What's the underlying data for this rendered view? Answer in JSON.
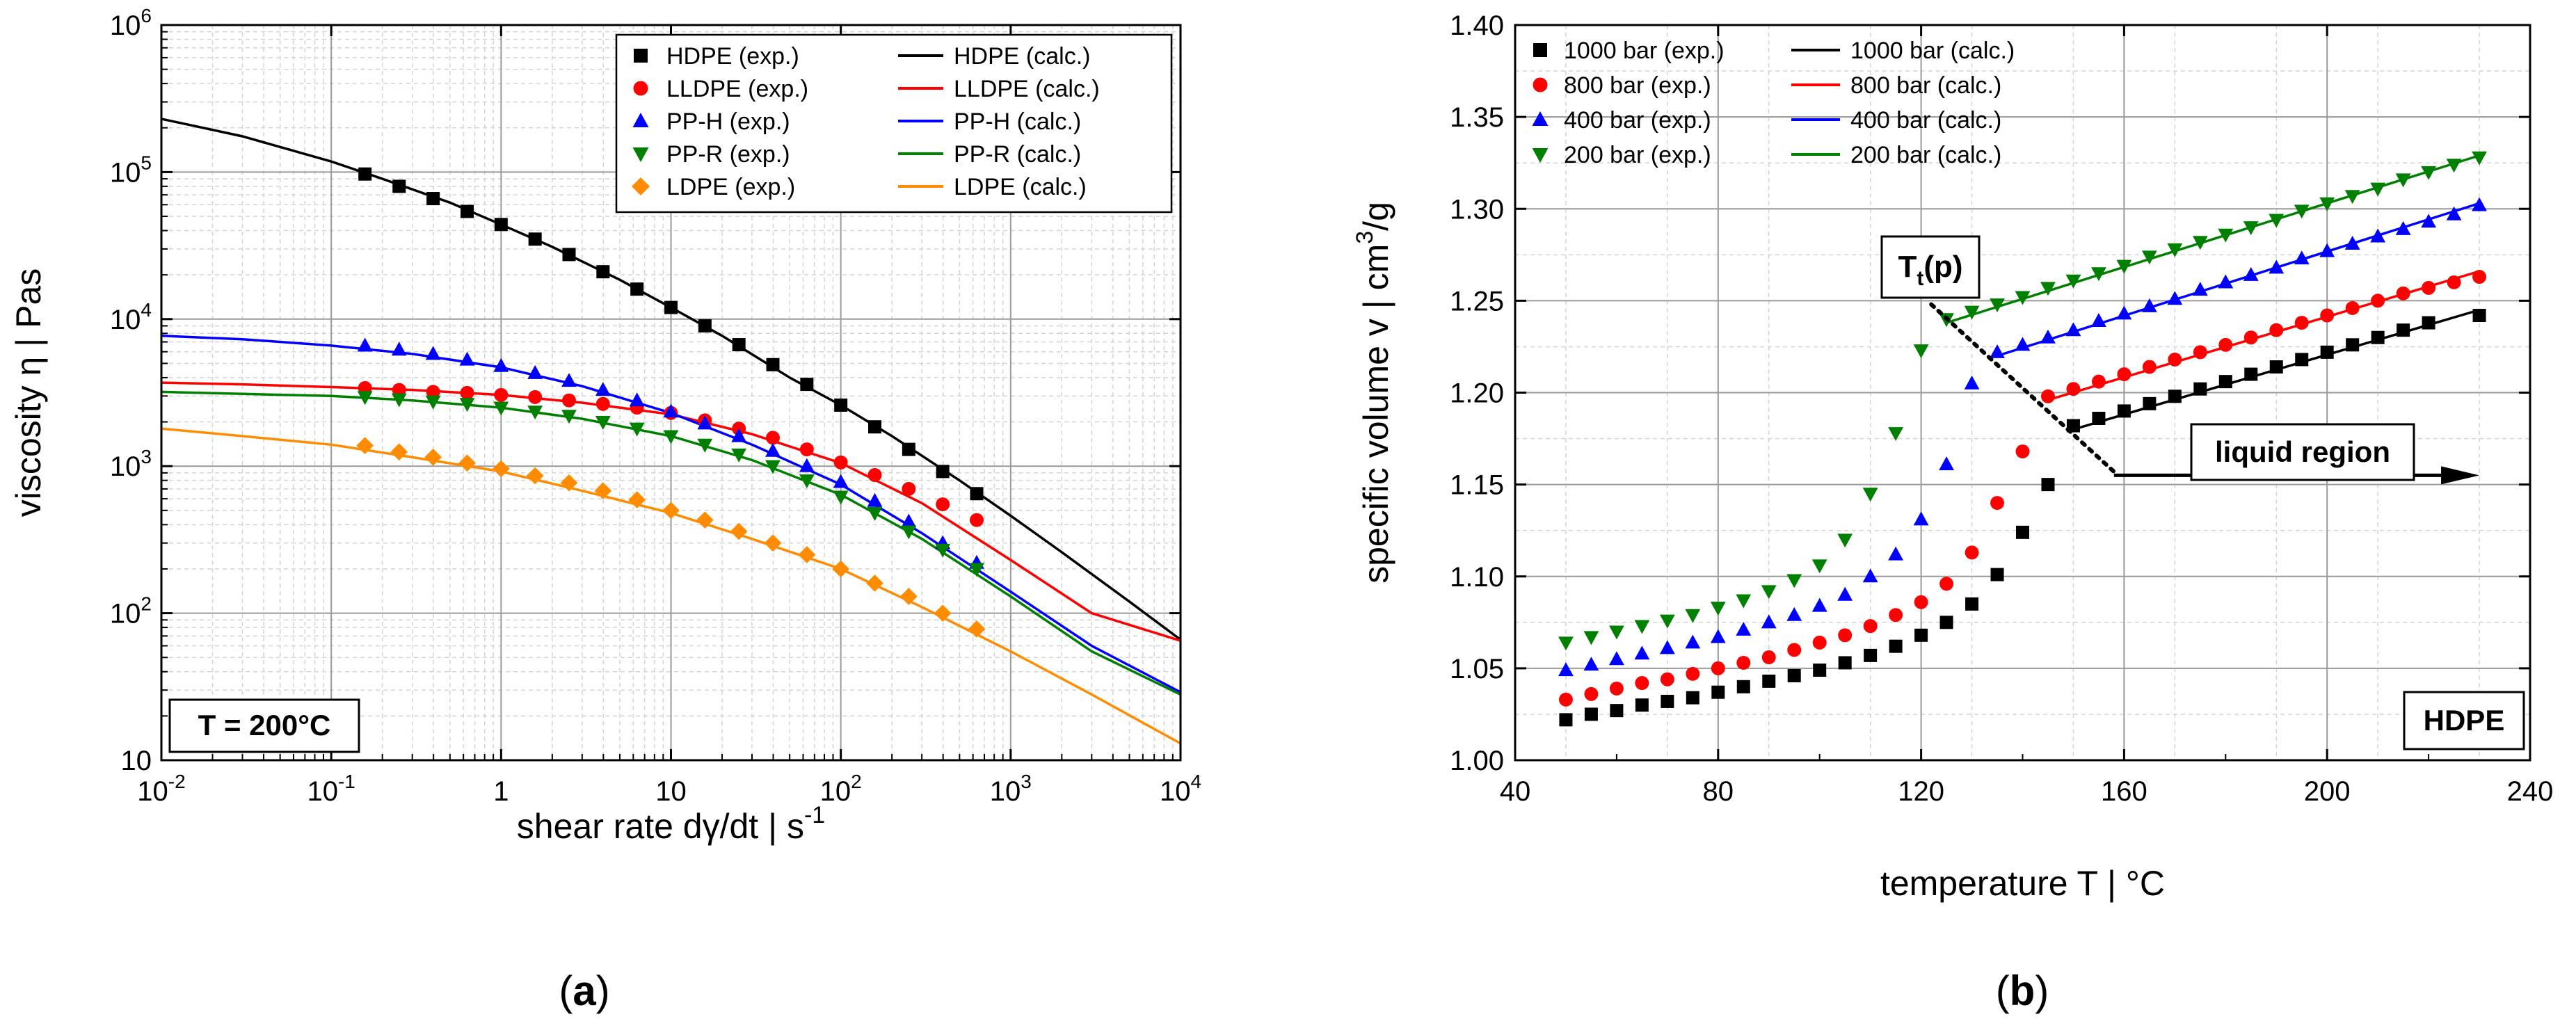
{
  "chart_data": [
    {
      "panel_label": "(a)",
      "type": "scatter",
      "xscale": "log",
      "yscale": "log",
      "xlim": [
        0.01,
        10000
      ],
      "ylim": [
        10,
        1000000
      ],
      "xlabel": "shear rate dγ/dt  |  s-1",
      "ylabel": "viscosity η  |  Pas",
      "x_ticks": [
        "10-2",
        "10-1",
        "1",
        "10",
        "102",
        "103",
        "104"
      ],
      "y_ticks": [
        "10",
        "102",
        "103",
        "104",
        "105",
        "106"
      ],
      "grid": true,
      "legend_position": "top-right",
      "annotation": "T = 200°C",
      "series": [
        {
          "material": "HDPE",
          "exp_label": "HDPE  (exp.)",
          "calc_label": "HDPE  (calc.)",
          "color": "#000000",
          "marker": "square",
          "exp": {
            "x": [
              0.158,
              0.251,
              0.398,
              0.631,
              1.0,
              1.585,
              2.512,
              3.981,
              6.31,
              10,
              15.85,
              25.12,
              39.81,
              63.1,
              100,
              158.5,
              251.2,
              398.1,
              631
            ],
            "y": [
              97000,
              80000,
              66000,
              54000,
              44000,
              35000,
              27500,
              21000,
              16000,
              12000,
              9000,
              6700,
              4900,
              3600,
              2600,
              1850,
              1300,
              920,
              650
            ]
          },
          "calc": {
            "x": [
              0.01,
              0.03,
              0.1,
              0.2,
              0.5,
              1,
              2,
              5,
              10,
              20,
              50,
              100,
              200,
              500,
              1000,
              2000,
              5000,
              10000
            ],
            "y": [
              230000,
              175000,
              118000,
              90000,
              62000,
              44000,
              31000,
              18500,
              12000,
              7700,
              4000,
              2600,
              1600,
              800,
              460,
              260,
              120,
              66
            ]
          }
        },
        {
          "material": "LLDPE",
          "exp_label": "LLDPE (exp.)",
          "calc_label": "LLDPE  (calc.)",
          "color": "#ff0000",
          "marker": "circle",
          "exp": {
            "x": [
              0.158,
              0.251,
              0.398,
              0.631,
              1.0,
              1.585,
              2.512,
              3.981,
              6.31,
              10,
              15.85,
              25.12,
              39.81,
              63.1,
              100,
              158.5,
              251.2,
              398.1,
              631
            ],
            "y": [
              3400,
              3300,
              3200,
              3150,
              3050,
              2950,
              2800,
              2650,
              2500,
              2300,
              2050,
              1800,
              1560,
              1300,
              1060,
              870,
              700,
              550,
              430
            ]
          },
          "calc": {
            "x": [
              0.01,
              0.03,
              0.1,
              0.3,
              1,
              3,
              10,
              30,
              100,
              300,
              1000,
              3000,
              10000
            ],
            "y": [
              3700,
              3600,
              3450,
              3300,
              3050,
              2700,
              2250,
              1650,
              1050,
              560,
              230,
              100,
              65
            ]
          }
        },
        {
          "material": "PP-H",
          "exp_label": "PP-H    (exp.)",
          "calc_label": "PP-H     (calc.)",
          "color": "#0000ff",
          "marker": "triangle-up",
          "exp": {
            "x": [
              0.158,
              0.251,
              0.398,
              0.631,
              1.0,
              1.585,
              2.512,
              3.981,
              6.31,
              10,
              15.85,
              25.12,
              39.81,
              63.1,
              100,
              158.5,
              251.2,
              398.1,
              631
            ],
            "y": [
              6600,
              6200,
              5800,
              5300,
              4800,
              4300,
              3800,
              3300,
              2800,
              2350,
              1950,
              1600,
              1270,
              1000,
              780,
              580,
              420,
              300,
              220
            ]
          },
          "calc": {
            "x": [
              0.01,
              0.03,
              0.1,
              0.3,
              1,
              3,
              10,
              30,
              100,
              300,
              1000,
              3000,
              10000
            ],
            "y": [
              7700,
              7300,
              6600,
              5800,
              4700,
              3500,
              2300,
              1400,
              750,
              350,
              140,
              60,
              29
            ]
          }
        },
        {
          "material": "PP-R",
          "exp_label": "PP-R    (exp.)",
          "calc_label": "PP-R     (calc.)",
          "color": "#008000",
          "marker": "triangle-down",
          "exp": {
            "x": [
              0.158,
              0.251,
              0.398,
              0.631,
              1.0,
              1.585,
              2.512,
              3.981,
              6.31,
              10,
              15.85,
              25.12,
              39.81,
              63.1,
              100,
              158.5,
              251.2,
              398.1,
              631
            ],
            "y": [
              2950,
              2850,
              2750,
              2650,
              2500,
              2350,
              2200,
              2000,
              1800,
              1600,
              1400,
              1200,
              1000,
              800,
              620,
              480,
              360,
              270,
              200
            ]
          },
          "calc": {
            "x": [
              0.01,
              0.03,
              0.1,
              0.3,
              1,
              3,
              10,
              30,
              100,
              300,
              1000,
              3000,
              10000
            ],
            "y": [
              3200,
              3100,
              3000,
              2800,
              2500,
              2100,
              1600,
              1100,
              640,
              320,
              130,
              55,
              28
            ]
          }
        },
        {
          "material": "LDPE",
          "exp_label": "LDPE    (exp.)",
          "calc_label": "LDPE     (calc.)",
          "color": "#ff8c00",
          "marker": "diamond",
          "exp": {
            "x": [
              0.158,
              0.251,
              0.398,
              0.631,
              1.0,
              1.585,
              2.512,
              3.981,
              6.31,
              10,
              15.85,
              25.12,
              39.81,
              63.1,
              100,
              158.5,
              251.2,
              398.1,
              631
            ],
            "y": [
              1380,
              1250,
              1150,
              1050,
              960,
              860,
              770,
              680,
              590,
              500,
              430,
              360,
              300,
              250,
              200,
              160,
              130,
              100,
              78
            ]
          },
          "calc": {
            "x": [
              0.01,
              0.03,
              0.1,
              0.3,
              1,
              3,
              10,
              30,
              100,
              300,
              1000,
              3000,
              10000
            ],
            "y": [
              1800,
              1600,
              1400,
              1150,
              920,
              680,
              480,
              320,
              200,
              110,
              55,
              28,
              13
            ]
          }
        }
      ]
    },
    {
      "panel_label": "(b)",
      "type": "scatter",
      "xlim": [
        40,
        240
      ],
      "ylim": [
        1.0,
        1.4
      ],
      "xlabel": "temperature T  |  °C",
      "ylabel": "specific volume v  |  cm3/g",
      "x_ticks": [
        "40",
        "80",
        "120",
        "160",
        "200",
        "240"
      ],
      "y_ticks": [
        "1.00",
        "1.05",
        "1.10",
        "1.15",
        "1.20",
        "1.25",
        "1.30",
        "1.35",
        "1.40"
      ],
      "grid": true,
      "legend_position": "top-left",
      "annotations": {
        "transition": "Tt(p)",
        "region": "liquid region",
        "material": "HDPE"
      },
      "transition_line": {
        "x": [
          122,
          158
        ],
        "y": [
          1.248,
          1.157
        ]
      },
      "region_arrow": {
        "x": [
          158,
          230
        ],
        "y": [
          1.155,
          1.155
        ]
      },
      "series": [
        {
          "pressure": "1000 bar",
          "exp_label": "1000 bar  (exp.)",
          "calc_label": "1000 bar   (calc.)",
          "color": "#000000",
          "marker": "square",
          "exp": {
            "x": [
              50,
              55,
              60,
              65,
              70,
              75,
              80,
              85,
              90,
              95,
              100,
              105,
              110,
              115,
              120,
              125,
              130,
              135,
              140,
              145,
              150,
              155,
              160,
              165,
              170,
              175,
              180,
              185,
              190,
              195,
              200,
              205,
              210,
              215,
              220,
              230
            ],
            "y": [
              1.022,
              1.025,
              1.027,
              1.03,
              1.032,
              1.034,
              1.037,
              1.04,
              1.043,
              1.046,
              1.049,
              1.053,
              1.057,
              1.062,
              1.068,
              1.075,
              1.085,
              1.101,
              1.124,
              1.15,
              1.182,
              1.186,
              1.19,
              1.194,
              1.198,
              1.202,
              1.206,
              1.21,
              1.214,
              1.218,
              1.222,
              1.226,
              1.23,
              1.234,
              1.238,
              1.242
            ]
          },
          "calc": {
            "x": [
              150,
              230
            ],
            "y": [
              1.18,
              1.245
            ]
          }
        },
        {
          "pressure": "800 bar",
          "exp_label": "800 bar   (exp.)",
          "calc_label": "800 bar    (calc.)",
          "color": "#ff0000",
          "marker": "circle",
          "exp": {
            "x": [
              50,
              55,
              60,
              65,
              70,
              75,
              80,
              85,
              90,
              95,
              100,
              105,
              110,
              115,
              120,
              125,
              130,
              135,
              140,
              145,
              150,
              155,
              160,
              165,
              170,
              175,
              180,
              185,
              190,
              195,
              200,
              205,
              210,
              215,
              220,
              225,
              230
            ],
            "y": [
              1.033,
              1.036,
              1.039,
              1.042,
              1.044,
              1.047,
              1.05,
              1.053,
              1.056,
              1.06,
              1.064,
              1.068,
              1.073,
              1.079,
              1.086,
              1.096,
              1.113,
              1.14,
              1.168,
              1.198,
              1.202,
              1.206,
              1.21,
              1.214,
              1.218,
              1.222,
              1.226,
              1.23,
              1.234,
              1.238,
              1.242,
              1.246,
              1.25,
              1.254,
              1.257,
              1.26,
              1.263
            ]
          },
          "calc": {
            "x": [
              145,
              230
            ],
            "y": [
              1.196,
              1.266
            ]
          }
        },
        {
          "pressure": "400 bar",
          "exp_label": "400 bar   (exp.)",
          "calc_label": "400 bar    (calc.)",
          "color": "#0000ff",
          "marker": "triangle-up",
          "exp": {
            "x": [
              50,
              55,
              60,
              65,
              70,
              75,
              80,
              85,
              90,
              95,
              100,
              105,
              110,
              115,
              120,
              125,
              130,
              135,
              140,
              145,
              150,
              155,
              160,
              165,
              170,
              175,
              180,
              185,
              190,
              195,
              200,
              205,
              210,
              215,
              220,
              225,
              230
            ],
            "y": [
              1.049,
              1.052,
              1.055,
              1.058,
              1.061,
              1.064,
              1.067,
              1.071,
              1.075,
              1.079,
              1.084,
              1.09,
              1.1,
              1.112,
              1.131,
              1.161,
              1.205,
              1.222,
              1.226,
              1.23,
              1.234,
              1.239,
              1.243,
              1.247,
              1.251,
              1.256,
              1.26,
              1.264,
              1.268,
              1.273,
              1.277,
              1.281,
              1.285,
              1.289,
              1.293,
              1.297,
              1.302
            ]
          },
          "calc": {
            "x": [
              135,
              230
            ],
            "y": [
              1.22,
              1.303
            ]
          }
        },
        {
          "pressure": "200 bar",
          "exp_label": "200 bar   (exp.)",
          "calc_label": "200 bar    (calc.)",
          "color": "#008000",
          "marker": "triangle-down",
          "exp": {
            "x": [
              50,
              55,
              60,
              65,
              70,
              75,
              80,
              85,
              90,
              95,
              100,
              105,
              110,
              115,
              120,
              125,
              130,
              135,
              140,
              145,
              150,
              155,
              160,
              165,
              170,
              175,
              180,
              185,
              190,
              195,
              200,
              205,
              210,
              215,
              220,
              225,
              230
            ],
            "y": [
              1.064,
              1.067,
              1.07,
              1.073,
              1.076,
              1.079,
              1.083,
              1.087,
              1.092,
              1.098,
              1.106,
              1.12,
              1.145,
              1.178,
              1.223,
              1.24,
              1.244,
              1.248,
              1.252,
              1.257,
              1.261,
              1.265,
              1.269,
              1.274,
              1.278,
              1.282,
              1.286,
              1.29,
              1.294,
              1.299,
              1.303,
              1.307,
              1.311,
              1.316,
              1.32,
              1.324,
              1.328
            ]
          },
          "calc": {
            "x": [
              125,
              230
            ],
            "y": [
              1.238,
              1.329
            ]
          }
        }
      ]
    }
  ]
}
